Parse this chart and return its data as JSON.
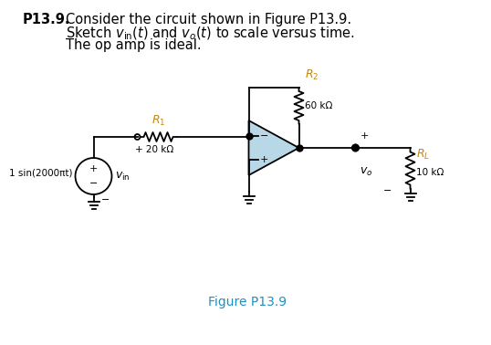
{
  "bg_color": "#ffffff",
  "wire_color": "#000000",
  "opamp_fill": "#b8d8e8",
  "text_color": "#000000",
  "label_color": "#c8860a",
  "figure_label_color": "#2090c0",
  "title_bold": "P13.9.",
  "title_rest": "  Consider the circuit shown in Figure P13.9.\n        Sketch $v_{\\mathrm{in}}(t)$ and $v_o(t)$ to scale versus time.\n        The op amp is ideal.",
  "figure_label": "Figure P13.9",
  "source_label": "1 sin(2000πt)",
  "vin_label": "$v_{\\mathrm{in}}$",
  "vo_label": "$v_o$",
  "R1_label": "$R_1$",
  "R1_value": "20 kΩ",
  "R2_label": "$R_2$",
  "R2_value": "60 kΩ",
  "RL_label": "$R_L$",
  "RL_value": "10 kΩ"
}
